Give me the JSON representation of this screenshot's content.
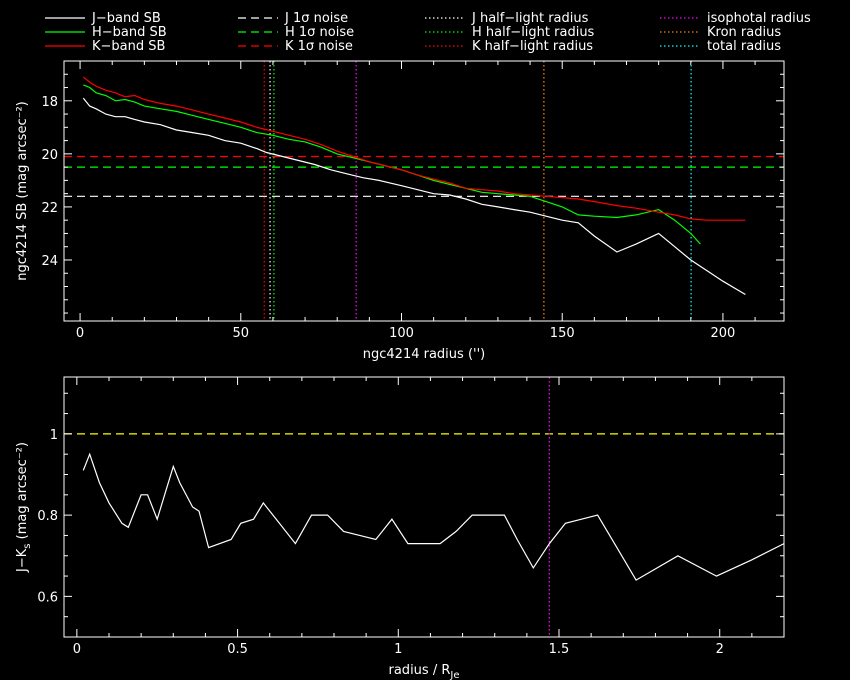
{
  "legend": [
    {
      "label": "J−band SB",
      "color": "#ffffff",
      "style": "solid"
    },
    {
      "label": "H−band SB",
      "color": "#00ff00",
      "style": "solid"
    },
    {
      "label": "K−band SB",
      "color": "#ff0000",
      "style": "solid"
    },
    {
      "label": "J 1σ noise",
      "color": "#ffffff",
      "style": "dashed"
    },
    {
      "label": "H 1σ noise",
      "color": "#00ff00",
      "style": "dashed"
    },
    {
      "label": "K 1σ noise",
      "color": "#ff0000",
      "style": "dashed"
    },
    {
      "label": "J half−light radius",
      "color": "#ffffff",
      "style": "dotted"
    },
    {
      "label": "H half−light radius",
      "color": "#00ff00",
      "style": "dotted"
    },
    {
      "label": "K half−light radius",
      "color": "#ff0000",
      "style": "dotted"
    },
    {
      "label": "isophotal radius",
      "color": "#ff00ff",
      "style": "dotted"
    },
    {
      "label": "Kron radius",
      "color": "#ff8000",
      "style": "dotted"
    },
    {
      "label": "total radius",
      "color": "#00ffff",
      "style": "dotted"
    }
  ],
  "chart_data": [
    {
      "type": "line",
      "xlabel": "ngc4214 radius ('')",
      "ylabel": "ngc4214 SB (mag arcsec⁻²)",
      "xlim": [
        -5,
        219
      ],
      "ylim": [
        26.3,
        16.5
      ],
      "xticks": [
        "0",
        "50",
        "100",
        "150",
        "200"
      ],
      "yticks": [
        "18",
        "20",
        "22",
        "24"
      ],
      "series": [
        {
          "name": "J−band SB",
          "color": "#ffffff",
          "x": [
            1,
            3,
            5,
            8,
            11,
            14,
            17,
            20,
            25,
            30,
            35,
            40,
            45,
            50,
            55,
            58,
            63,
            68,
            73,
            78,
            83,
            88,
            93,
            100,
            105,
            110,
            115,
            120,
            125,
            130,
            135,
            140,
            145,
            150,
            155,
            160,
            167,
            173,
            180,
            185,
            190,
            195,
            200,
            207
          ],
          "y": [
            17.9,
            18.2,
            18.3,
            18.5,
            18.6,
            18.6,
            18.7,
            18.8,
            18.9,
            19.1,
            19.2,
            19.3,
            19.5,
            19.6,
            19.8,
            19.95,
            20.1,
            20.25,
            20.4,
            20.6,
            20.75,
            20.9,
            21.0,
            21.2,
            21.35,
            21.5,
            21.55,
            21.7,
            21.9,
            22.0,
            22.1,
            22.2,
            22.35,
            22.5,
            22.6,
            23.1,
            23.7,
            23.4,
            23.0,
            23.5,
            24.0,
            24.4,
            24.8,
            25.3
          ]
        },
        {
          "name": "H−band SB",
          "color": "#00ff00",
          "x": [
            1,
            3,
            5,
            8,
            11,
            14,
            17,
            20,
            25,
            30,
            35,
            40,
            45,
            50,
            55,
            60,
            65,
            70,
            75,
            80,
            85,
            90,
            95,
            100,
            105,
            110,
            115,
            120,
            125,
            130,
            135,
            140,
            145,
            150,
            155,
            160,
            167,
            173,
            180,
            185,
            190,
            193
          ],
          "y": [
            17.4,
            17.5,
            17.7,
            17.8,
            18.0,
            17.95,
            18.05,
            18.2,
            18.3,
            18.4,
            18.55,
            18.7,
            18.85,
            19.0,
            19.2,
            19.3,
            19.45,
            19.55,
            19.75,
            20.0,
            20.15,
            20.3,
            20.45,
            20.6,
            20.8,
            21.0,
            21.15,
            21.3,
            21.45,
            21.5,
            21.55,
            21.6,
            21.8,
            22.0,
            22.3,
            22.35,
            22.4,
            22.3,
            22.1,
            22.5,
            23.0,
            23.4
          ]
        },
        {
          "name": "K−band SB",
          "color": "#ff0000",
          "x": [
            1,
            3,
            5,
            8,
            11,
            14,
            17,
            20,
            25,
            30,
            35,
            40,
            45,
            50,
            55,
            60,
            65,
            70,
            75,
            80,
            85,
            90,
            95,
            100,
            105,
            110,
            115,
            120,
            125,
            130,
            135,
            140,
            145,
            150,
            155,
            160,
            167,
            173,
            180,
            185,
            190,
            195,
            200,
            207
          ],
          "y": [
            17.1,
            17.3,
            17.45,
            17.6,
            17.7,
            17.85,
            17.8,
            17.95,
            18.1,
            18.2,
            18.35,
            18.5,
            18.65,
            18.8,
            19.0,
            19.15,
            19.3,
            19.45,
            19.65,
            19.9,
            20.1,
            20.3,
            20.45,
            20.6,
            20.8,
            20.95,
            21.1,
            21.3,
            21.35,
            21.4,
            21.5,
            21.55,
            21.6,
            21.65,
            21.7,
            21.8,
            21.95,
            22.05,
            22.2,
            22.3,
            22.45,
            22.5,
            22.5,
            22.5
          ]
        }
      ],
      "hlines": [
        {
          "name": "J 1σ noise",
          "y": 21.6,
          "color": "#ffffff"
        },
        {
          "name": "H 1σ noise",
          "y": 20.5,
          "color": "#00ff00"
        },
        {
          "name": "K 1σ noise",
          "y": 20.1,
          "color": "#ff0000"
        }
      ],
      "vlines": [
        {
          "name": "K half−light radius",
          "x": 57.3,
          "color": "#ff0000"
        },
        {
          "name": "J half−light radius",
          "x": 59.1,
          "color": "#ffffff"
        },
        {
          "name": "H half−light radius",
          "x": 60.3,
          "color": "#00ff00"
        },
        {
          "name": "isophotal radius",
          "x": 85.9,
          "color": "#ff00ff"
        },
        {
          "name": "Kron radius",
          "x": 144.3,
          "color": "#ff8000"
        },
        {
          "name": "total radius",
          "x": 190.1,
          "color": "#00ffff"
        }
      ]
    },
    {
      "type": "line",
      "xlabel": "radius / R",
      "xlabel_sub": "Je",
      "ylabel": "J−K",
      "ylabel_sub": "s",
      "ylabel_rest": " (mag arcsec⁻²)",
      "xlim": [
        -0.04,
        2.2
      ],
      "ylim": [
        0.5,
        1.14
      ],
      "xticks": [
        "0",
        "0.5",
        "1",
        "1.5",
        "2"
      ],
      "yticks": [
        "0.6",
        "0.8",
        "1"
      ],
      "series": [
        {
          "name": "J−K",
          "color": "#ffffff",
          "x": [
            0.02,
            0.04,
            0.07,
            0.1,
            0.14,
            0.16,
            0.2,
            0.22,
            0.25,
            0.3,
            0.32,
            0.36,
            0.38,
            0.41,
            0.48,
            0.51,
            0.55,
            0.58,
            0.63,
            0.68,
            0.73,
            0.78,
            0.83,
            0.88,
            0.93,
            0.98,
            1.03,
            1.08,
            1.13,
            1.18,
            1.23,
            1.28,
            1.33,
            1.37,
            1.42,
            1.47,
            1.52,
            1.57,
            1.62,
            1.68,
            1.74,
            1.87,
            1.99,
            2.1,
            2.2
          ],
          "y": [
            0.91,
            0.95,
            0.88,
            0.83,
            0.78,
            0.77,
            0.85,
            0.85,
            0.79,
            0.92,
            0.88,
            0.82,
            0.81,
            0.72,
            0.74,
            0.78,
            0.79,
            0.83,
            0.78,
            0.73,
            0.8,
            0.8,
            0.76,
            0.75,
            0.74,
            0.79,
            0.73,
            0.73,
            0.73,
            0.76,
            0.8,
            0.8,
            0.8,
            0.74,
            0.67,
            0.73,
            0.78,
            0.79,
            0.8,
            0.72,
            0.64,
            0.7,
            0.65,
            0.69,
            0.73
          ]
        }
      ],
      "hlines": [
        {
          "y": 1.0,
          "color": "#ffff00"
        }
      ],
      "vlines": [
        {
          "x": 1.47,
          "color": "#ff00ff"
        }
      ]
    }
  ]
}
